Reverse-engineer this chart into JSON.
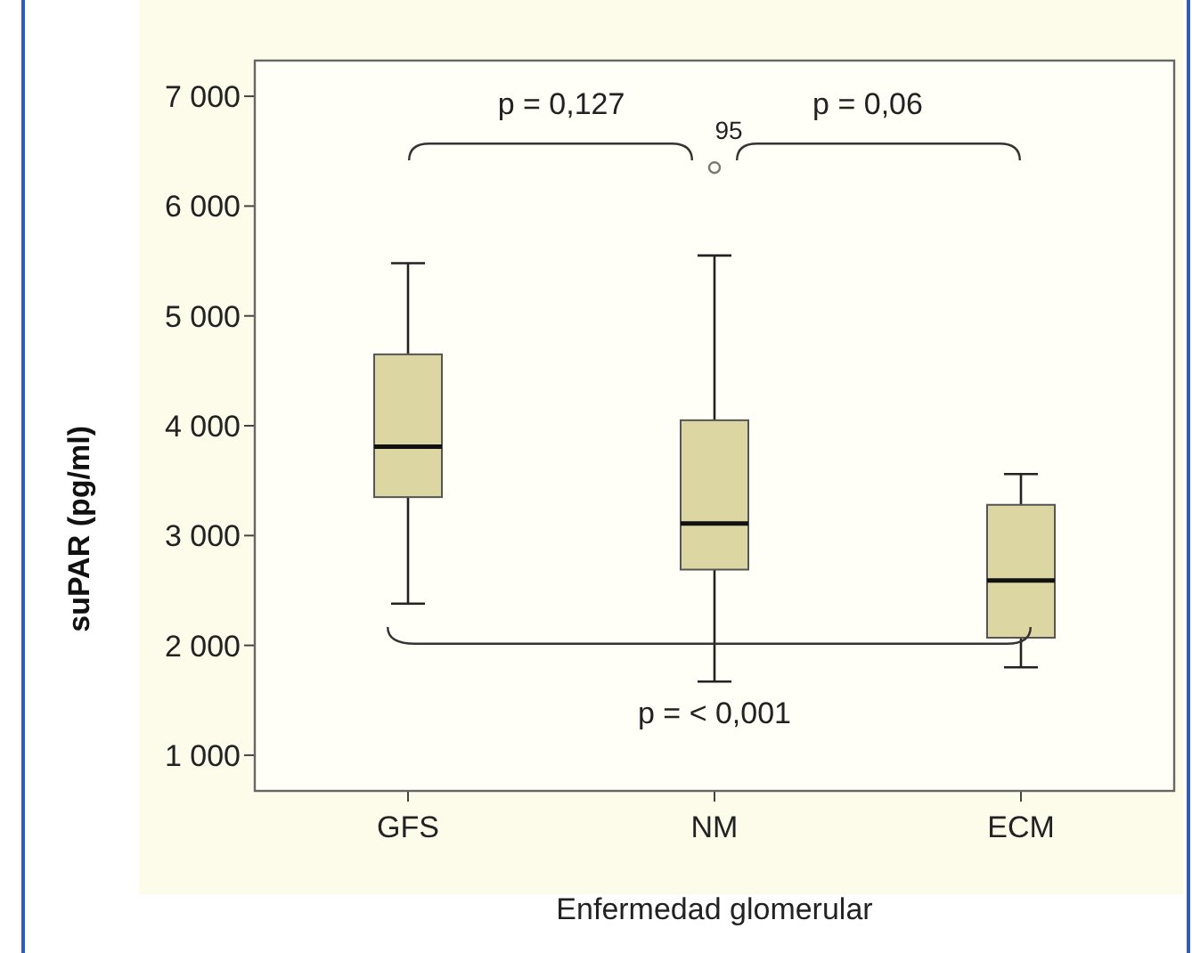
{
  "chart_data": {
    "type": "box",
    "xlabel": "Enfermedad glomerular",
    "ylabel": "suPAR (pg/ml)",
    "categories": [
      "GFS",
      "NM",
      "ECM"
    ],
    "series": [
      {
        "color": "#dcd6a2",
        "boxes": [
          {
            "low": 2380,
            "q1": 3350,
            "median": 3810,
            "q3": 4650,
            "high": 5480
          },
          {
            "low": 1670,
            "q1": 2690,
            "median": 3110,
            "q3": 4050,
            "high": 5550,
            "outliers": [
              6350
            ]
          },
          {
            "low": 1800,
            "q1": 2070,
            "median": 2590,
            "q3": 3280,
            "high": 3560
          }
        ]
      }
    ],
    "ylim": [
      675,
      7325
    ],
    "yticks": [
      {
        "value": 1000,
        "label": "1 000"
      },
      {
        "value": 2000,
        "label": "2 000"
      },
      {
        "value": 3000,
        "label": "3 000"
      },
      {
        "value": 4000,
        "label": "4 000"
      },
      {
        "value": 5000,
        "label": "5 000"
      },
      {
        "value": 6000,
        "label": "6 000"
      },
      {
        "value": 7000,
        "label": "7 000"
      }
    ],
    "annotations": [
      "p = 0,127",
      "p = 0,06",
      "p = < 0,001",
      "95"
    ]
  }
}
